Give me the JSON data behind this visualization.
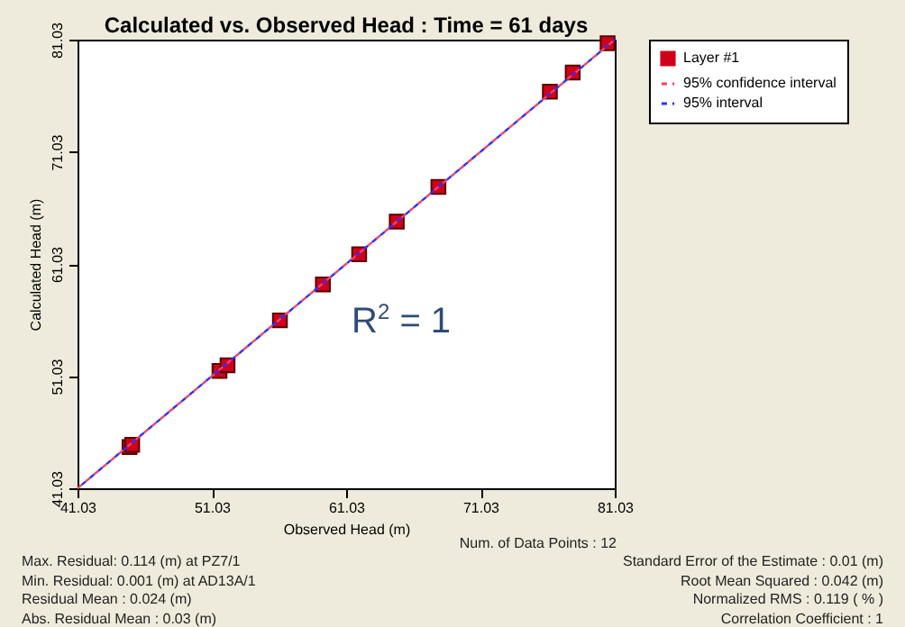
{
  "chart_data": {
    "type": "scatter",
    "title": "Calculated vs. Observed Head : Time = 61 days",
    "xlabel": "Observed Head (m)",
    "ylabel": "Calculated Head (m)",
    "xlim": [
      41.03,
      81.03
    ],
    "ylim": [
      41.03,
      81.03
    ],
    "xticks": [
      {
        "value": 41.03,
        "label": "41.03"
      },
      {
        "value": 51.03,
        "label": "51.03"
      },
      {
        "value": 61.03,
        "label": "61.03"
      },
      {
        "value": 71.03,
        "label": "71.03"
      },
      {
        "value": 81.03,
        "label": "81.03"
      }
    ],
    "yticks": [
      {
        "value": 41.03,
        "label": "41.03"
      },
      {
        "value": 51.03,
        "label": "51.03"
      },
      {
        "value": 61.03,
        "label": "61.03"
      },
      {
        "value": 71.03,
        "label": "71.03"
      },
      {
        "value": 81.03,
        "label": "81.03"
      }
    ],
    "legend": "top right",
    "series": [
      {
        "name": "Layer #1",
        "marker": "square",
        "color": "#d0021b",
        "x": [
          44.9,
          45.1,
          51.6,
          52.2,
          56.1,
          59.3,
          62.0,
          64.8,
          67.9,
          76.2,
          77.9,
          80.5
        ],
        "values": [
          44.7,
          44.9,
          51.5,
          52.0,
          56.0,
          59.2,
          61.9,
          64.8,
          67.9,
          76.4,
          78.1,
          80.7
        ]
      },
      {
        "name": "95% confidence interval",
        "type": "line",
        "marker": "none",
        "line_style": "dashed",
        "color": "#ff4060",
        "x": [
          41.03,
          81.03
        ],
        "values": [
          41.03,
          81.03
        ]
      },
      {
        "name": "95% interval",
        "type": "line",
        "marker": "none",
        "line_style": "dashed",
        "color": "#3030ff",
        "x": [
          41.03,
          81.03
        ],
        "values": [
          41.03,
          81.03
        ]
      }
    ],
    "annotations": [
      "R$^{2}$ = 1",
      "Num. of Data Points : 12",
      "Max. Residual: 0.114 (m) at PZ7/1",
      "Min. Residual: 0.001 (m) at AD13A/1",
      "Residual Mean : 0.024 (m)",
      "Abs. Residual Mean : 0.03 (m)",
      "Standard Error of the Estimate : 0.01 (m)",
      "Root Mean Squared : 0.042 (m)",
      "Normalized RMS : 0.119 ( % )",
      "Correlation Coefficient : 1"
    ]
  }
}
